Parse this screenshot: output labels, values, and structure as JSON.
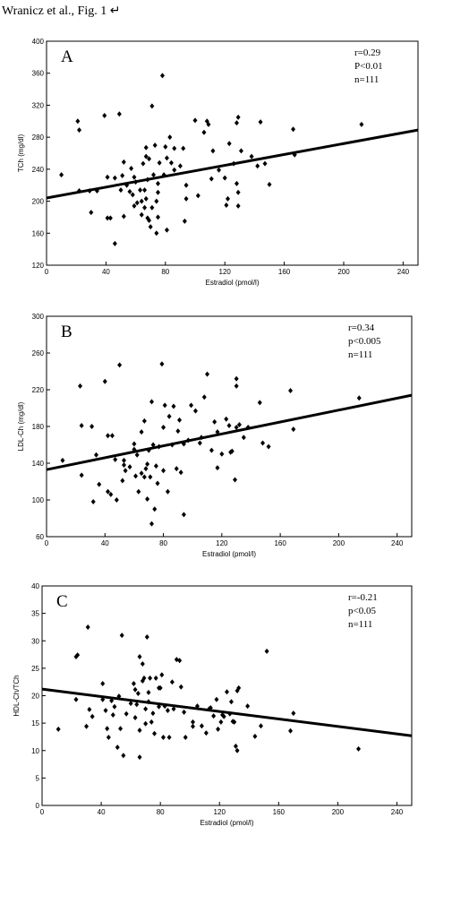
{
  "caption": "Wranicz et al., Fig. 1 ↵",
  "chart_data": [
    {
      "type": "scatter",
      "panel_label": "A",
      "x_label": "Estradiol (pmol/l)",
      "y_label": "TCh (mg/dl)",
      "annotations": [
        "r=0.29",
        "P<0.01",
        "n=111"
      ],
      "color": "#000000",
      "xlim": [
        0,
        250
      ],
      "ylim": [
        120,
        400
      ],
      "xticks": [
        0,
        40,
        80,
        120,
        160,
        200,
        240
      ],
      "yticks": [
        120,
        160,
        200,
        240,
        280,
        320,
        360,
        400
      ],
      "fit": {
        "x": [
          0,
          250
        ],
        "y": [
          204,
          289
        ]
      },
      "x": [
        10,
        21,
        22,
        22,
        29,
        30,
        34,
        39,
        41,
        43,
        41,
        46,
        46,
        49,
        50,
        51,
        52,
        52,
        54,
        56,
        57,
        58,
        59,
        59,
        60,
        61,
        63,
        64,
        64,
        65,
        66,
        66,
        67,
        67,
        67,
        68,
        68,
        69,
        69,
        70,
        71,
        71,
        72,
        73,
        74,
        74,
        75,
        75,
        75,
        76,
        78,
        79,
        80,
        81,
        81,
        83,
        84,
        86,
        86,
        90,
        92,
        93,
        94,
        94,
        100,
        102,
        106,
        108,
        109,
        111,
        112,
        116,
        120,
        121,
        122,
        123,
        126,
        128,
        128,
        129,
        129,
        129,
        131,
        138,
        142,
        144,
        147,
        150,
        166,
        167,
        212
      ],
      "values": [
        233,
        300,
        289,
        213,
        213,
        186,
        213,
        307,
        179,
        179,
        230,
        229,
        147,
        309,
        214,
        232,
        181,
        249,
        220,
        212,
        241,
        208,
        194,
        230,
        224,
        198,
        214,
        200,
        183,
        247,
        214,
        192,
        267,
        256,
        203,
        179,
        227,
        253,
        176,
        168,
        192,
        319,
        233,
        270,
        200,
        160,
        180,
        222,
        211,
        248,
        357,
        233,
        268,
        254,
        164,
        280,
        248,
        239,
        266,
        244,
        266,
        175,
        220,
        203,
        301,
        207,
        286,
        300,
        296,
        228,
        263,
        239,
        229,
        195,
        203,
        272,
        247,
        222,
        298,
        194,
        211,
        305,
        263,
        256,
        244,
        299,
        247,
        221,
        290,
        258,
        296
      ]
    },
    {
      "type": "scatter",
      "panel_label": "B",
      "x_label": "Estradiol (pmol/l)",
      "y_label": "LDL-Ch (mg/dl)",
      "annotations": [
        "r=0.34",
        "p<0.005",
        "n=111"
      ],
      "color": "#000000",
      "xlim": [
        0,
        250
      ],
      "ylim": [
        60,
        300
      ],
      "xticks": [
        0,
        40,
        80,
        120,
        160,
        200,
        240
      ],
      "yticks": [
        60,
        100,
        140,
        180,
        220,
        260,
        300
      ],
      "fit": {
        "x": [
          0,
          250
        ],
        "y": [
          133,
          214
        ]
      },
      "x": [
        11,
        23,
        24,
        24,
        31,
        32,
        34,
        36,
        40,
        42,
        42,
        44,
        45,
        47,
        48,
        50,
        52,
        53,
        53,
        54,
        57,
        60,
        60,
        61,
        62,
        63,
        65,
        65,
        67,
        67,
        68,
        69,
        69,
        70,
        71,
        72,
        72,
        73,
        74,
        75,
        76,
        77,
        79,
        80,
        80,
        81,
        83,
        84,
        86,
        87,
        89,
        90,
        91,
        92,
        94,
        94,
        97,
        99,
        102,
        105,
        106,
        108,
        110,
        113,
        115,
        117,
        117,
        120,
        123,
        125,
        126,
        127,
        130,
        130,
        129,
        130,
        132,
        135,
        138,
        146,
        148,
        152,
        167,
        169,
        214
      ],
      "values": [
        143,
        224,
        181,
        127,
        180,
        98,
        149,
        117,
        229,
        109,
        170,
        106,
        170,
        144,
        100,
        247,
        121,
        143,
        138,
        132,
        136,
        155,
        161,
        126,
        149,
        109,
        129,
        174,
        125,
        186,
        134,
        101,
        139,
        154,
        125,
        207,
        74,
        160,
        90,
        137,
        118,
        158,
        248,
        179,
        132,
        203,
        109,
        191,
        160,
        202,
        134,
        175,
        187,
        130,
        84,
        161,
        165,
        203,
        197,
        162,
        168,
        212,
        237,
        154,
        185,
        174,
        135,
        150,
        188,
        181,
        152,
        153,
        232,
        224,
        122,
        179,
        182,
        168,
        179,
        206,
        162,
        158,
        219,
        177,
        211
      ]
    },
    {
      "type": "scatter",
      "panel_label": "C",
      "x_label": "Estradiol (pmol/l)",
      "y_label": "HDL-Ch/TCh",
      "annotations": [
        "r=-0.21",
        "p<0.05",
        "n=111"
      ],
      "color": "#000000",
      "xlim": [
        0,
        250
      ],
      "ylim": [
        0,
        40
      ],
      "xticks": [
        0,
        40,
        80,
        120,
        160,
        200,
        240
      ],
      "yticks": [
        0,
        5,
        10,
        15,
        20,
        25,
        30,
        35,
        40
      ],
      "fit": {
        "x": [
          0,
          250
        ],
        "y": [
          21.2,
          12.7
        ]
      },
      "x": [
        11,
        23,
        24,
        23,
        30,
        31,
        32,
        34,
        41,
        41,
        43,
        44,
        45,
        47,
        48,
        49,
        51,
        52,
        53,
        54,
        55,
        57,
        60,
        62,
        63,
        63,
        64,
        65,
        66,
        66,
        66,
        68,
        68,
        69,
        70,
        70,
        71,
        72,
        72,
        73,
        74,
        75,
        76,
        77,
        79,
        79,
        80,
        81,
        82,
        83,
        85,
        86,
        88,
        89,
        91,
        93,
        94,
        96,
        97,
        102,
        102,
        105,
        108,
        111,
        113,
        114,
        116,
        118,
        119,
        121,
        122,
        123,
        125,
        127,
        128,
        129,
        130,
        131,
        132,
        132,
        133,
        139,
        144,
        148,
        152,
        168,
        170,
        214
      ],
      "values": [
        13.9,
        27.1,
        27.4,
        19.3,
        14.4,
        32.5,
        17.5,
        16.2,
        19.3,
        22.2,
        17.3,
        14,
        12.4,
        19.1,
        16.5,
        18,
        10.6,
        19.9,
        14,
        31,
        9.1,
        16.7,
        18.6,
        22.2,
        21.1,
        16,
        18.4,
        20.4,
        27.1,
        8.8,
        13.7,
        22.7,
        25.8,
        23.2,
        17.6,
        14.9,
        30.7,
        20.6,
        18.9,
        23.2,
        15.2,
        16.8,
        13.1,
        23.2,
        21.4,
        18,
        21.4,
        23.8,
        12.4,
        18.1,
        17.3,
        12.4,
        22.5,
        17.6,
        26.6,
        26.4,
        21.6,
        17,
        12.4,
        15.2,
        14.4,
        18.1,
        14.5,
        13.2,
        17.6,
        17.8,
        16.3,
        19.3,
        13.9,
        15.2,
        16.5,
        16.2,
        20.7,
        16.7,
        18.9,
        15.3,
        15.2,
        10.8,
        10,
        20.9,
        21.4,
        18.1,
        12.6,
        14.5,
        28.1,
        13.6,
        16.8,
        10.3
      ]
    }
  ]
}
